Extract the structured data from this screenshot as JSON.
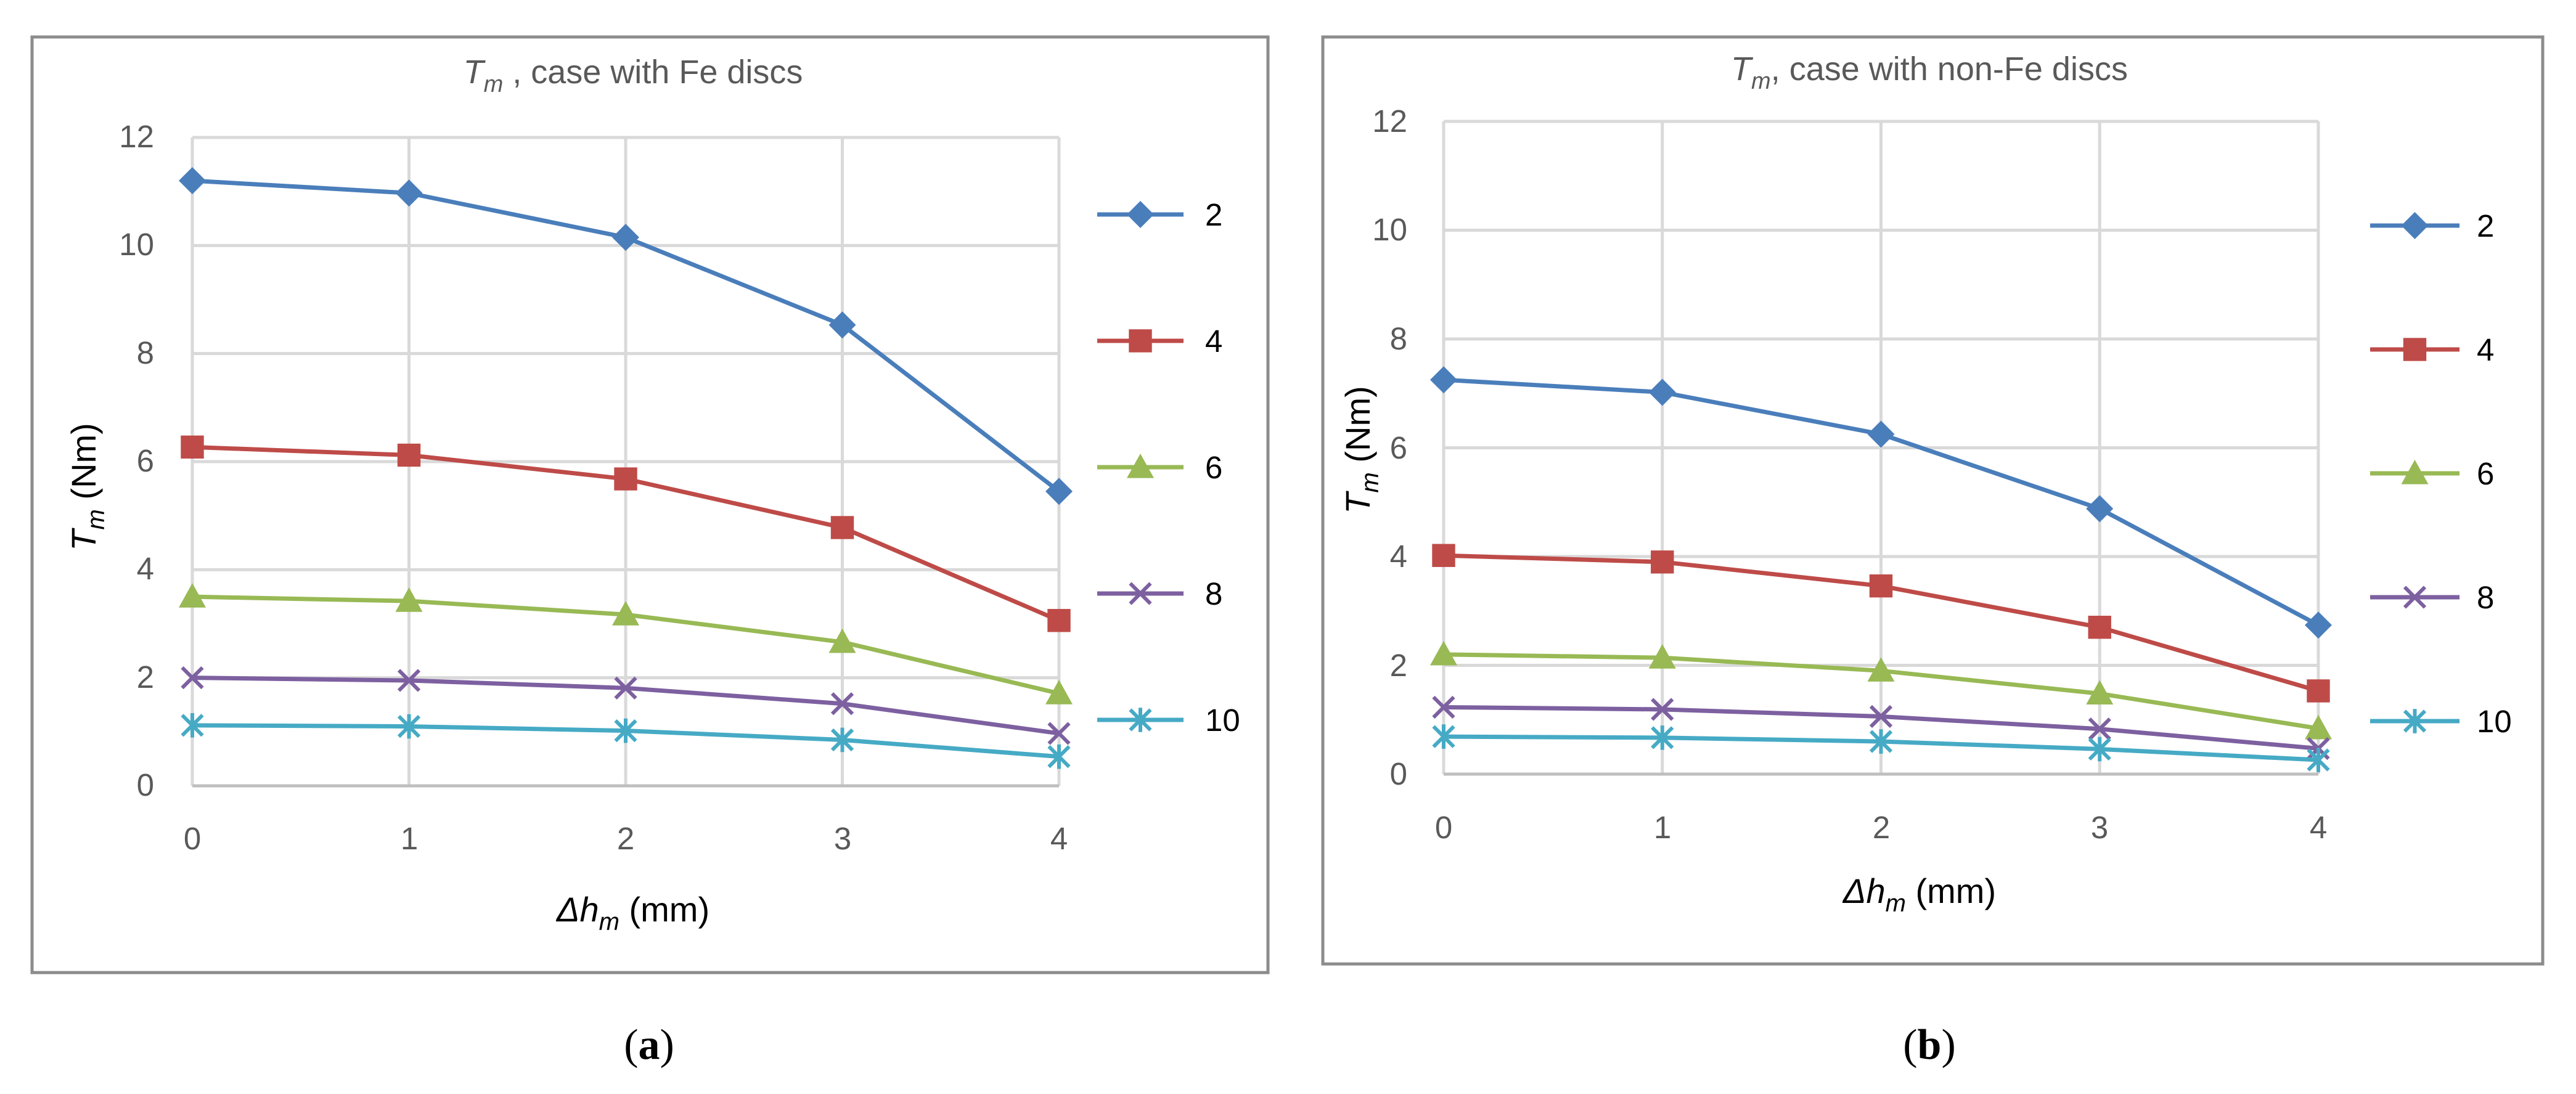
{
  "chart_data": [
    {
      "type": "line",
      "panel_label": "a",
      "title_main": "T",
      "title_sub": "m",
      "title_rest": " , case with Fe discs",
      "xlabel_main": "Δh",
      "xlabel_sub": "m",
      "xlabel_unit": " (mm)",
      "ylabel_main": "T",
      "ylabel_sub": "m",
      "ylabel_unit": " (Nm)",
      "x": [
        0,
        1,
        2,
        3,
        4
      ],
      "x_ticks": [
        "0",
        "1",
        "2",
        "3",
        "4"
      ],
      "y_ticks": [
        "0",
        "2",
        "4",
        "6",
        "8",
        "10",
        "12"
      ],
      "ylim": [
        0,
        12
      ],
      "grid": true,
      "legend_position": "right",
      "series": [
        {
          "name": "2",
          "color": "#4a7ebb",
          "marker": "diamond",
          "values": [
            11.2,
            10.97,
            10.15,
            8.53,
            5.45
          ]
        },
        {
          "name": "4",
          "color": "#be4b48",
          "marker": "square",
          "values": [
            6.27,
            6.12,
            5.68,
            4.78,
            3.06
          ]
        },
        {
          "name": "6",
          "color": "#98b954",
          "marker": "triangle",
          "values": [
            3.5,
            3.42,
            3.17,
            2.66,
            1.71
          ]
        },
        {
          "name": "8",
          "color": "#7d60a0",
          "marker": "x",
          "values": [
            2.0,
            1.95,
            1.81,
            1.52,
            0.97
          ]
        },
        {
          "name": "10",
          "color": "#46aac5",
          "marker": "star",
          "values": [
            1.12,
            1.1,
            1.02,
            0.85,
            0.54
          ]
        }
      ]
    },
    {
      "type": "line",
      "panel_label": "b",
      "title_main": "T",
      "title_sub": "m",
      "title_rest": ", case with non-Fe discs",
      "xlabel_main": "Δh",
      "xlabel_sub": "m",
      "xlabel_unit": " (mm)",
      "ylabel_main": "T",
      "ylabel_sub": "m",
      "ylabel_unit": " (Nm)",
      "x": [
        0,
        1,
        2,
        3,
        4
      ],
      "x_ticks": [
        "0",
        "1",
        "2",
        "3",
        "4"
      ],
      "y_ticks": [
        "0",
        "2",
        "4",
        "6",
        "8",
        "10",
        "12"
      ],
      "ylim": [
        0,
        12
      ],
      "grid": true,
      "legend_position": "right",
      "series": [
        {
          "name": "2",
          "color": "#4a7ebb",
          "marker": "diamond",
          "values": [
            7.25,
            7.02,
            6.25,
            4.88,
            2.74
          ]
        },
        {
          "name": "4",
          "color": "#be4b48",
          "marker": "square",
          "values": [
            4.02,
            3.9,
            3.46,
            2.7,
            1.53
          ]
        },
        {
          "name": "6",
          "color": "#98b954",
          "marker": "triangle",
          "values": [
            2.2,
            2.14,
            1.9,
            1.48,
            0.84
          ]
        },
        {
          "name": "8",
          "color": "#7d60a0",
          "marker": "x",
          "values": [
            1.23,
            1.19,
            1.06,
            0.83,
            0.47
          ]
        },
        {
          "name": "10",
          "color": "#46aac5",
          "marker": "star",
          "values": [
            0.69,
            0.67,
            0.6,
            0.46,
            0.26
          ]
        }
      ]
    }
  ]
}
